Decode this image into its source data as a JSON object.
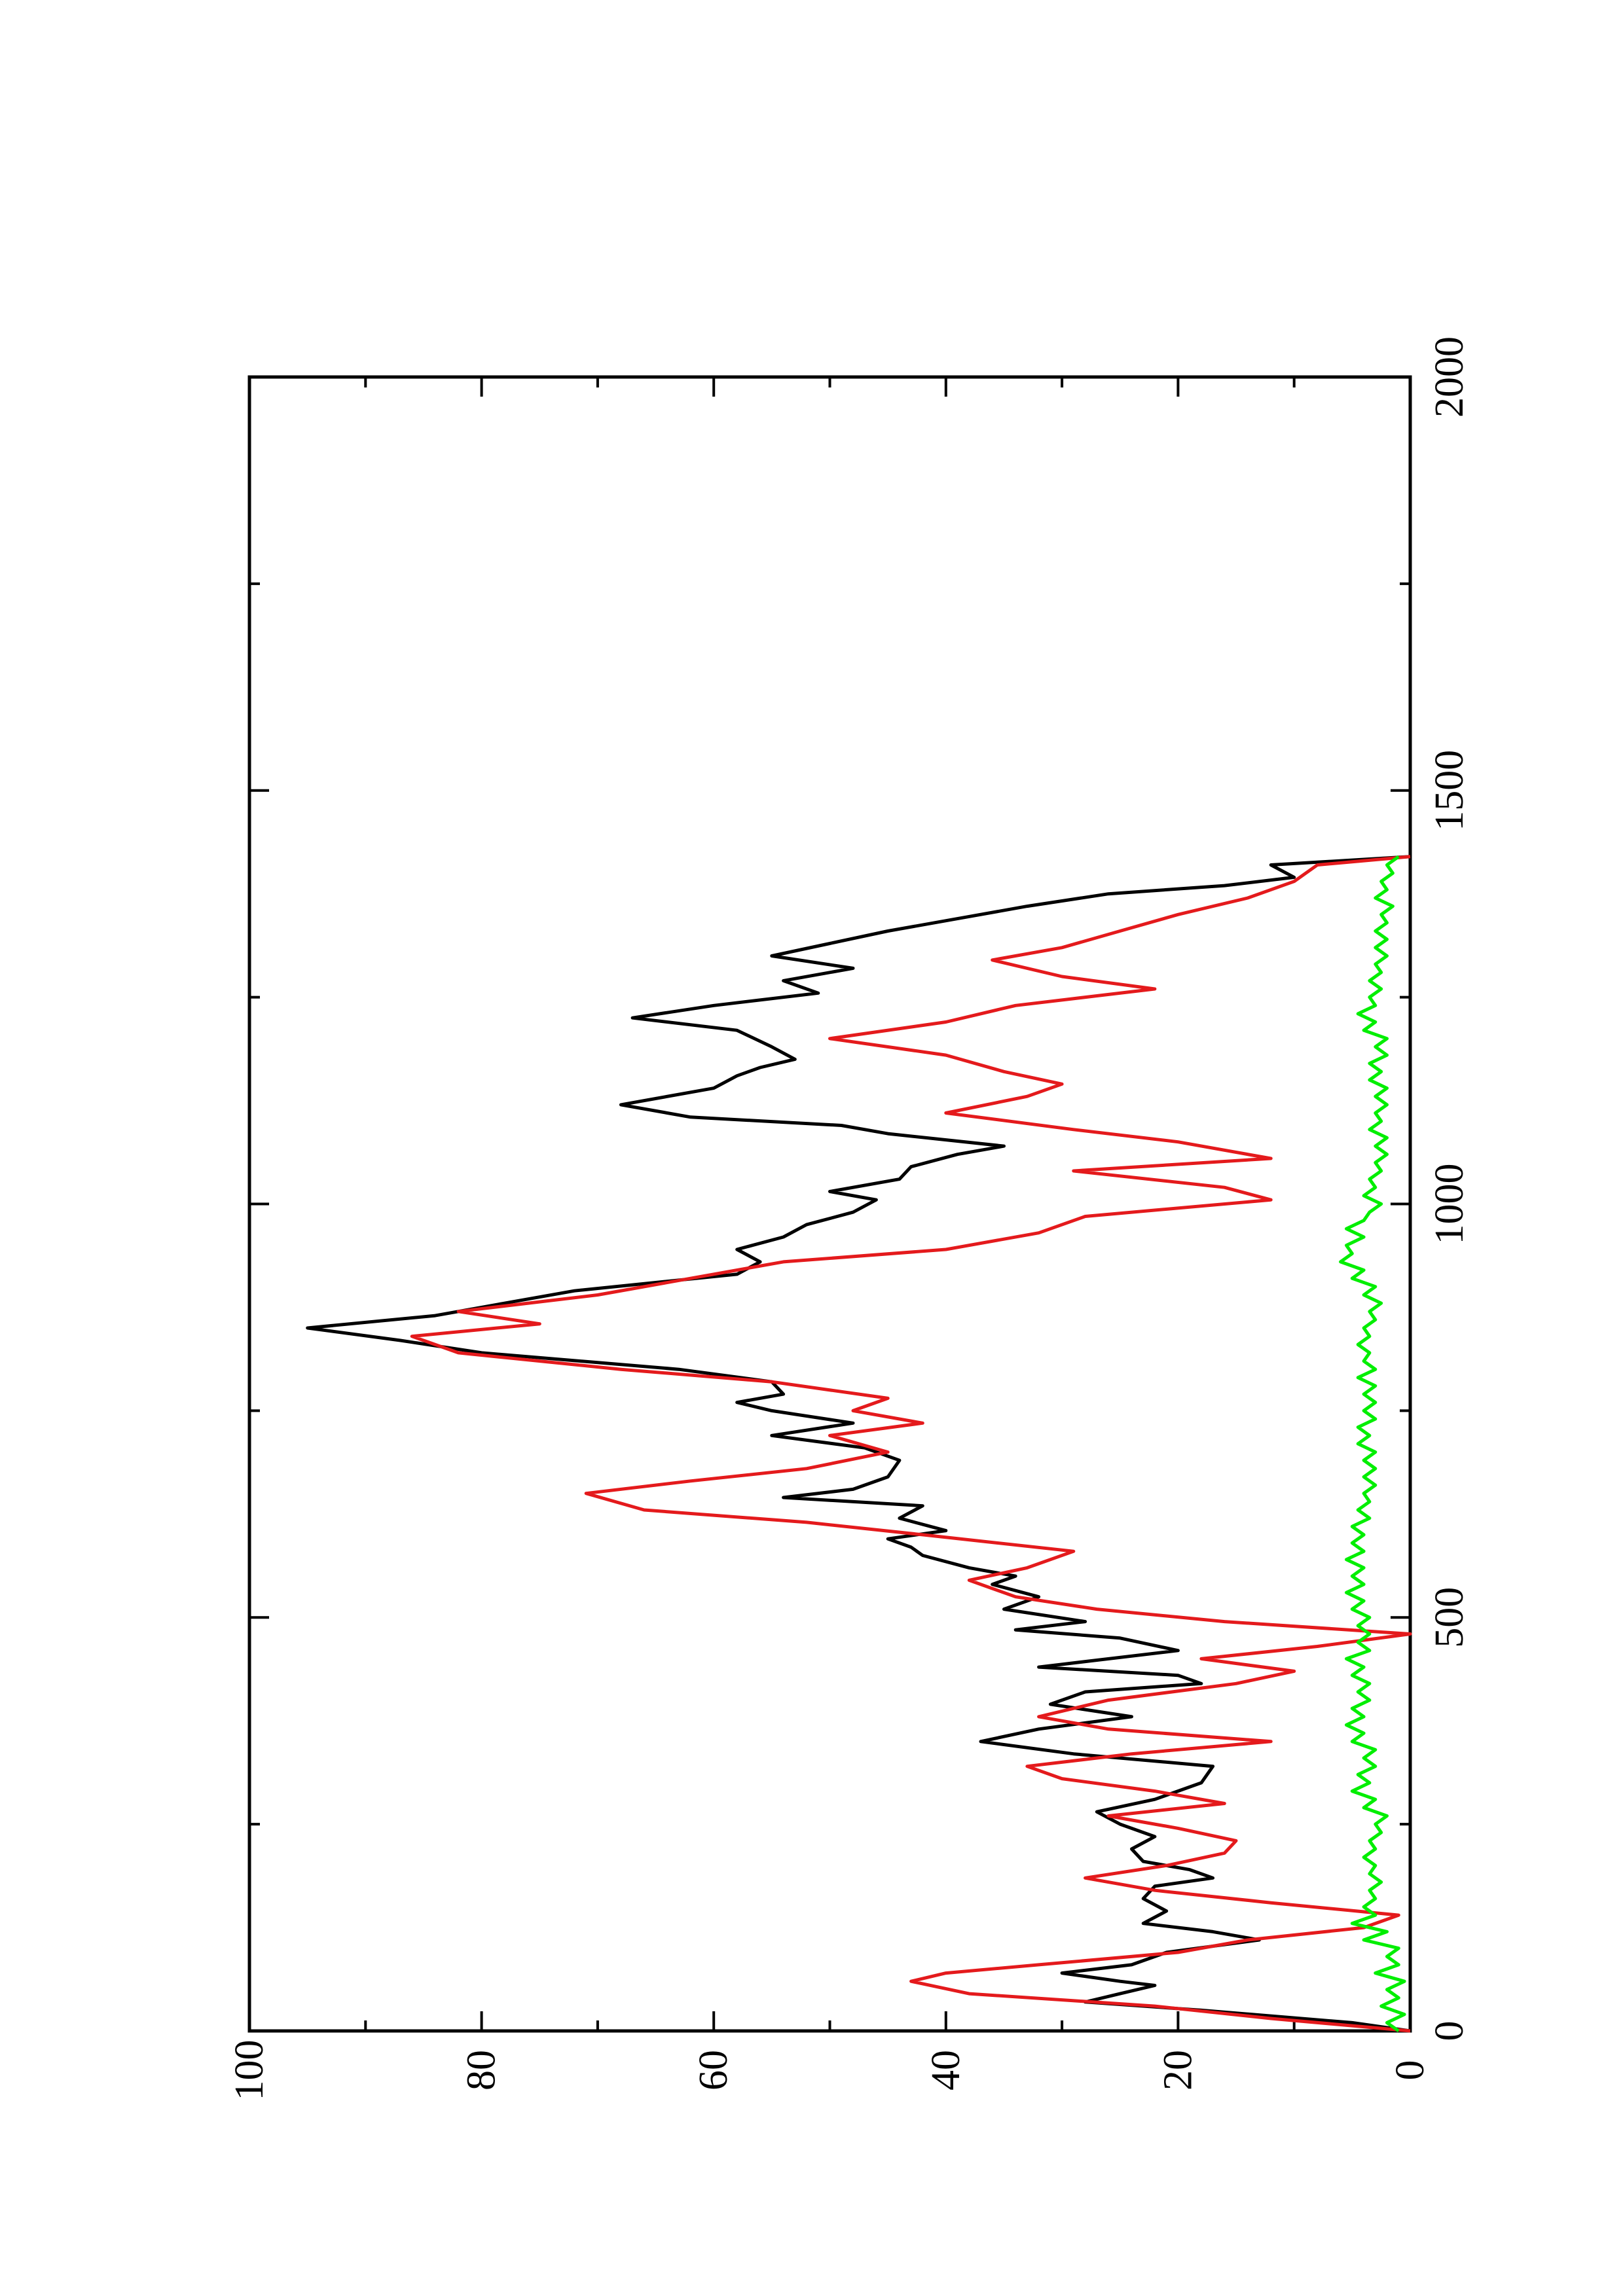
{
  "chart_data": {
    "type": "line",
    "orientation": "rotated-90-ccw",
    "title": "",
    "xlabel": "",
    "ylabel": "",
    "xlim": [
      0,
      2000
    ],
    "ylim": [
      0,
      100
    ],
    "x_ticks": [
      0,
      500,
      1000,
      1500,
      2000
    ],
    "y_ticks": [
      0,
      20,
      40,
      60,
      80,
      100
    ],
    "x_tick_labels": [
      "0",
      "500",
      "1000",
      "1500",
      "2000"
    ],
    "y_tick_labels": [
      "0",
      "20",
      "40",
      "60",
      "80",
      "100"
    ],
    "grid": false,
    "legend": "none",
    "series": [
      {
        "color": "#000000",
        "x": [
          0,
          10,
          25,
          35,
          45,
          55,
          60,
          70,
          80,
          95,
          110,
          120,
          130,
          145,
          160,
          175,
          185,
          195,
          205,
          220,
          235,
          250,
          265,
          280,
          300,
          320,
          335,
          350,
          365,
          380,
          395,
          410,
          420,
          430,
          440,
          460,
          475,
          485,
          495,
          510,
          525,
          540,
          550,
          560,
          575,
          585,
          595,
          605,
          620,
          635,
          645,
          655,
          670,
          690,
          705,
          720,
          735,
          750,
          760,
          770,
          785,
          800,
          820,
          835,
          850,
          865,
          880,
          895,
          905,
          915,
          930,
          945,
          960,
          975,
          990,
          1005,
          1015,
          1030,
          1045,
          1060,
          1070,
          1085,
          1095,
          1105,
          1120,
          1140,
          1155,
          1165,
          1175,
          1190,
          1210,
          1225,
          1240,
          1255,
          1270,
          1285,
          1300,
          1315,
          1330,
          1345,
          1360,
          1375,
          1385,
          1395,
          1410,
          1420
        ],
        "y": [
          0,
          5,
          18,
          28,
          25,
          22,
          25,
          30,
          24,
          21,
          13,
          17,
          23,
          21,
          23,
          22,
          17,
          19,
          23,
          24,
          22,
          25,
          27,
          22,
          18,
          17,
          29,
          37,
          32,
          24,
          31,
          28,
          18,
          20,
          32,
          20,
          25,
          34,
          28,
          35,
          32,
          36,
          34,
          38,
          42,
          43,
          45,
          40,
          44,
          42,
          54,
          48,
          45,
          44,
          47,
          55,
          48,
          55,
          58,
          54,
          55,
          63,
          80,
          87,
          95,
          84,
          78,
          72,
          65,
          58,
          56,
          58,
          54,
          52,
          48,
          46,
          50,
          44,
          43,
          39,
          35,
          45,
          49,
          62,
          68,
          60,
          58,
          56,
          53,
          55,
          58,
          67,
          60,
          51,
          54,
          48,
          55,
          50,
          45,
          39,
          33,
          26,
          16,
          10,
          12,
          0
        ]
      },
      {
        "color": "#e41a1c",
        "x": [
          0,
          15,
          30,
          45,
          60,
          70,
          80,
          95,
          110,
          125,
          140,
          155,
          170,
          185,
          200,
          215,
          230,
          245,
          260,
          275,
          290,
          305,
          320,
          335,
          350,
          365,
          380,
          400,
          420,
          435,
          450,
          465,
          480,
          495,
          510,
          525,
          545,
          560,
          580,
          600,
          615,
          630,
          650,
          665,
          680,
          700,
          720,
          735,
          750,
          765,
          785,
          800,
          820,
          840,
          855,
          870,
          890,
          910,
          930,
          945,
          965,
          985,
          1005,
          1020,
          1040,
          1055,
          1075,
          1090,
          1110,
          1130,
          1145,
          1160,
          1180,
          1200,
          1220,
          1240,
          1260,
          1275,
          1295,
          1310,
          1330,
          1350,
          1370,
          1390,
          1410,
          1420
        ],
        "y": [
          0,
          12,
          22,
          38,
          43,
          40,
          32,
          20,
          14,
          4,
          1,
          12,
          22,
          28,
          21,
          16,
          15,
          20,
          26,
          16,
          22,
          30,
          33,
          24,
          12,
          26,
          32,
          26,
          15,
          10,
          18,
          8,
          0,
          16,
          27,
          34,
          38,
          33,
          29,
          42,
          52,
          66,
          71,
          62,
          52,
          45,
          50,
          42,
          48,
          45,
          55,
          68,
          82,
          86,
          75,
          82,
          70,
          62,
          54,
          40,
          32,
          28,
          12,
          16,
          29,
          12,
          20,
          29,
          40,
          33,
          30,
          35,
          40,
          50,
          40,
          34,
          22,
          30,
          36,
          30,
          25,
          20,
          14,
          10,
          8,
          0
        ]
      },
      {
        "color": "#00ee00",
        "x": [
          0,
          10,
          20,
          30,
          40,
          50,
          60,
          70,
          80,
          90,
          100,
          110,
          120,
          130,
          140,
          150,
          160,
          170,
          180,
          190,
          200,
          210,
          220,
          230,
          240,
          250,
          260,
          270,
          280,
          290,
          300,
          310,
          320,
          330,
          340,
          350,
          360,
          370,
          380,
          390,
          400,
          410,
          420,
          430,
          440,
          450,
          460,
          470,
          480,
          490,
          500,
          510,
          520,
          530,
          540,
          550,
          560,
          570,
          580,
          590,
          600,
          610,
          620,
          630,
          640,
          650,
          660,
          670,
          680,
          690,
          700,
          710,
          720,
          730,
          740,
          750,
          760,
          770,
          780,
          790,
          800,
          810,
          820,
          830,
          840,
          850,
          860,
          870,
          880,
          890,
          900,
          910,
          920,
          930,
          940,
          950,
          960,
          970,
          980,
          990,
          1000,
          1010,
          1020,
          1030,
          1040,
          1050,
          1060,
          1070,
          1080,
          1090,
          1100,
          1110,
          1120,
          1130,
          1140,
          1150,
          1160,
          1170,
          1180,
          1190,
          1200,
          1210,
          1220,
          1230,
          1240,
          1250,
          1260,
          1270,
          1280,
          1290,
          1300,
          1310,
          1320,
          1330,
          1340,
          1350,
          1360,
          1370,
          1380,
          1390,
          1400,
          1410,
          1420
        ],
        "y": [
          1,
          2,
          0.5,
          2.5,
          1,
          2,
          0.5,
          3,
          1,
          2,
          1,
          4,
          2,
          5,
          3,
          4,
          3,
          3.5,
          2.5,
          3.5,
          3,
          4,
          3,
          3.5,
          2.5,
          3,
          2,
          4,
          3,
          5,
          3.5,
          4.5,
          3,
          4,
          3,
          5,
          4,
          5.5,
          4,
          5,
          3.5,
          4.5,
          3.5,
          5,
          4,
          5.5,
          3.5,
          4.5,
          3.5,
          4.5,
          3.5,
          5,
          4,
          5.5,
          4,
          5,
          4,
          5.5,
          4,
          5,
          4,
          5,
          3.5,
          4.5,
          3.5,
          4,
          3,
          4,
          3,
          4,
          3,
          4.5,
          3.5,
          4.5,
          3,
          4,
          3,
          4,
          3,
          4.5,
          3,
          4,
          3.5,
          4.5,
          3.5,
          4,
          3,
          3.5,
          2.5,
          4,
          3,
          5,
          4,
          6,
          5,
          5.5,
          4,
          5.5,
          4,
          3.5,
          2.5,
          4,
          3,
          3.5,
          2.5,
          3,
          2,
          3,
          2,
          3.5,
          2.5,
          3,
          2,
          3,
          2,
          3.5,
          2.5,
          3.5,
          2,
          3,
          2,
          4,
          3,
          4.5,
          3,
          3.5,
          2.5,
          3.5,
          2.5,
          3,
          2,
          3,
          2,
          3,
          2,
          2.5,
          1.5,
          3,
          2,
          2.5,
          1.5,
          2,
          1
        ]
      }
    ]
  }
}
